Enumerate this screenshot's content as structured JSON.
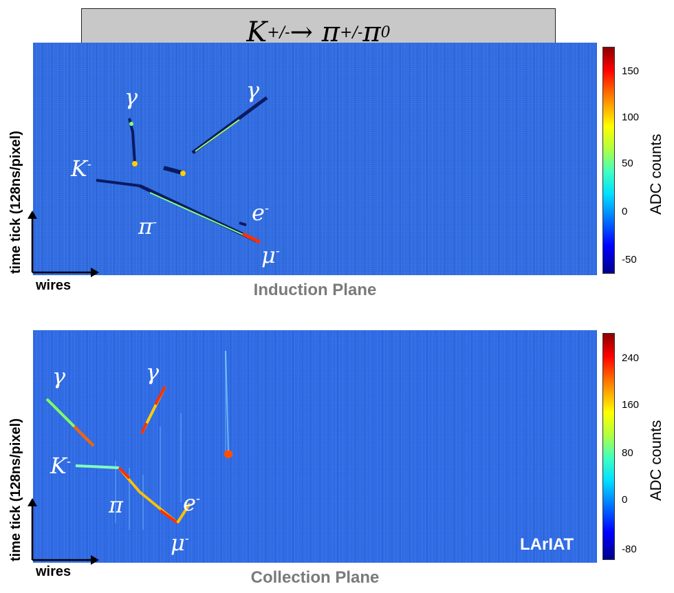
{
  "title": {
    "main": "K",
    "sup1": "+/-",
    "arrow": " → π",
    "sup2": "+/-",
    "tail": " π",
    "sup3": "0"
  },
  "induction": {
    "plane_label": "Induction Plane",
    "colorbar_title": "ADC counts",
    "colorbar_ticks": [
      "150",
      "100",
      "50",
      "0",
      "-50"
    ],
    "axis_y": "time tick (128ns/pixel)",
    "axis_x": "wires",
    "particles": {
      "gamma1": "γ",
      "gamma2": "γ",
      "kaon": "K",
      "kaon_sup": "-",
      "pion": "π",
      "pion_sup": "-",
      "electron": "e",
      "electron_sup": "-",
      "muon": "μ",
      "muon_sup": "-"
    }
  },
  "collection": {
    "plane_label": "Collection Plane",
    "colorbar_title": "ADC counts",
    "colorbar_ticks": [
      "240",
      "160",
      "80",
      "0",
      "-80"
    ],
    "axis_y": "time tick (128ns/pixel)",
    "axis_x": "wires",
    "experiment_label": "LArIAT",
    "particles": {
      "gamma1": "γ",
      "gamma2": "γ",
      "kaon": "K",
      "kaon_sup": "-",
      "pion": "π",
      "electron": "e",
      "electron_sup": "-",
      "muon": "μ",
      "muon_sup": "-"
    }
  }
}
